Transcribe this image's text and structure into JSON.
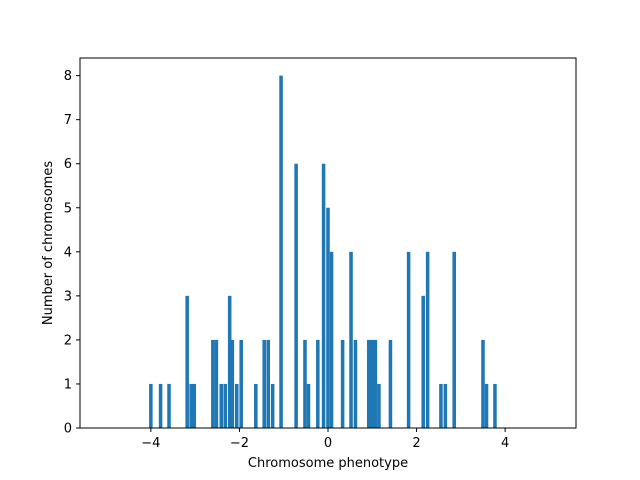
{
  "chart_data": {
    "type": "bar",
    "title": "",
    "xlabel": "Chromosome phenotype",
    "ylabel": "Number of chromosomes",
    "xlim": [
      -5.6,
      5.6
    ],
    "ylim": [
      0,
      8.4
    ],
    "xticks": [
      -4,
      -2,
      0,
      2,
      4
    ],
    "xtick_labels": [
      "−4",
      "−2",
      "0",
      "2",
      "4"
    ],
    "yticks": [
      0,
      1,
      2,
      3,
      4,
      5,
      6,
      7,
      8
    ],
    "ytick_labels": [
      "0",
      "1",
      "2",
      "3",
      "4",
      "5",
      "6",
      "7",
      "8"
    ],
    "bar_width": 0.08,
    "grid": false,
    "legend": "none",
    "bar_color": "#1f77b4",
    "x": [
      -4.0,
      -3.78,
      -3.59,
      -3.18,
      -3.09,
      -3.02,
      -2.6,
      -2.52,
      -2.41,
      -2.32,
      -2.22,
      -2.16,
      -2.06,
      -1.96,
      -1.63,
      -1.44,
      -1.35,
      -1.25,
      -1.06,
      -0.72,
      -0.52,
      -0.44,
      -0.23,
      -0.1,
      0.0,
      0.08,
      0.33,
      0.52,
      0.62,
      0.92,
      1.0,
      1.07,
      1.15,
      1.41,
      1.82,
      2.15,
      2.25,
      2.55,
      2.65,
      2.85,
      3.5,
      3.58,
      3.77
    ],
    "values": [
      1,
      1,
      1,
      3,
      1,
      1,
      2,
      2,
      1,
      1,
      3,
      2,
      1,
      2,
      1,
      2,
      2,
      1,
      8,
      6,
      2,
      1,
      2,
      6,
      5,
      4,
      2,
      4,
      2,
      2,
      2,
      2,
      1,
      2,
      4,
      3,
      4,
      1,
      1,
      4,
      2,
      1,
      1
    ]
  }
}
